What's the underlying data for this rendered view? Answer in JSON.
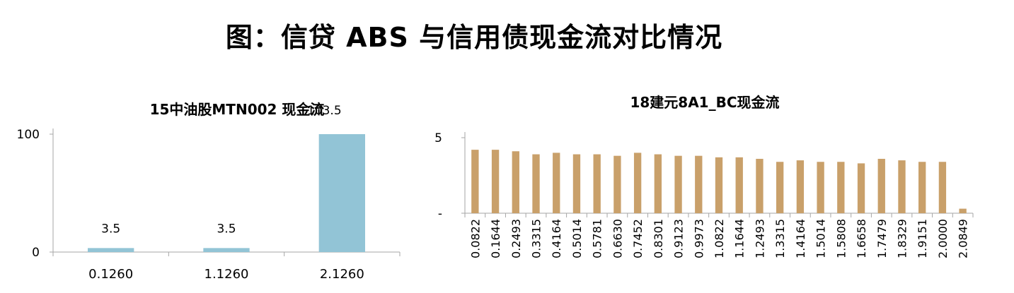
{
  "page": {
    "title": "图：信贷 ABS 与信用债现金流对比情况"
  },
  "colors": {
    "bar_left": "#92c4d6",
    "bar_right": "#c9a06a",
    "axis": "#a6a6a6"
  },
  "chart_data": [
    {
      "type": "bar",
      "title": "15中油股MTN002 现金流",
      "categories": [
        "0.1260",
        "1.1260",
        "2.1260"
      ],
      "values": [
        3.5,
        3.5,
        103.5
      ],
      "data_labels": [
        "3.5",
        "3.5",
        "103.5"
      ],
      "yticks": [
        "0",
        "100"
      ],
      "ylim": [
        0,
        103.5
      ],
      "grid": false
    },
    {
      "type": "bar",
      "title": "18建元8A1_BC现金流",
      "categories": [
        "0.0822",
        "0.1644",
        "0.2493",
        "0.3315",
        "0.4164",
        "0.5014",
        "0.5781",
        "0.6630",
        "0.7452",
        "0.8301",
        "0.9123",
        "0.9973",
        "1.0822",
        "1.1644",
        "1.2493",
        "1.3315",
        "1.4164",
        "1.5014",
        "1.5808",
        "1.6658",
        "1.7479",
        "1.8329",
        "1.9151",
        "2.0000",
        "2.0849"
      ],
      "values": [
        4.2,
        4.2,
        4.1,
        3.9,
        4.0,
        3.9,
        3.9,
        3.8,
        4.0,
        3.9,
        3.8,
        3.8,
        3.7,
        3.7,
        3.6,
        3.4,
        3.5,
        3.4,
        3.4,
        3.3,
        3.6,
        3.5,
        3.4,
        3.4,
        0.3
      ],
      "yticks": [
        "-",
        "5"
      ],
      "ylim": [
        0,
        5
      ],
      "grid": false
    }
  ]
}
